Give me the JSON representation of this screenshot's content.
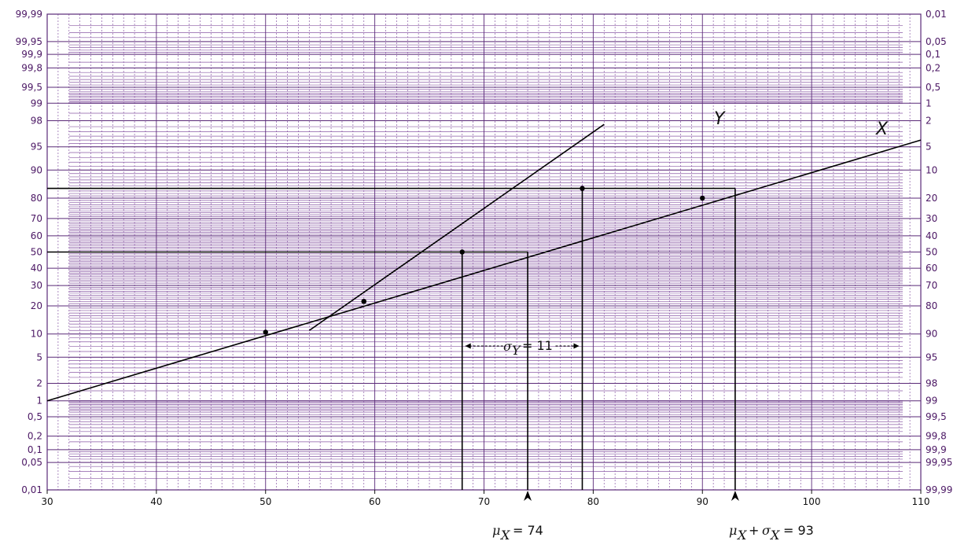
{
  "chart_data": {
    "type": "line",
    "title": "",
    "xlabel": "",
    "ylabel": "",
    "y_scale": "normal-probability",
    "xlim": [
      30,
      110
    ],
    "ylim_percent": [
      0.01,
      99.99
    ],
    "x_ticks": [
      "30",
      "40",
      "50",
      "60",
      "70",
      "80",
      "90",
      "100",
      "110"
    ],
    "left_ticks": [
      "99,99",
      "99,95",
      "99,9",
      "99,8",
      "99,5",
      "99",
      "98",
      "95",
      "90",
      "80",
      "70",
      "60",
      "50",
      "40",
      "30",
      "20",
      "10",
      "5",
      "2",
      "1",
      "0,5",
      "0,2",
      "0,1",
      "0,05",
      "0,01"
    ],
    "right_ticks": [
      "0,01",
      "0,05",
      "0,1",
      "0,2",
      "0,5",
      "1",
      "2",
      "5",
      "10",
      "20",
      "30",
      "40",
      "50",
      "60",
      "70",
      "80",
      "90",
      "95",
      "98",
      "99",
      "99,5",
      "99,8",
      "99,9",
      "99,95",
      "99,99"
    ],
    "series": [
      {
        "name": "X",
        "x": [
          30,
          110
        ],
        "y": [
          1,
          96
        ],
        "points": {
          "x": [
            50,
            59,
            90
          ],
          "y": [
            10.5,
            22,
            80
          ]
        }
      },
      {
        "name": "Y",
        "x": [
          54,
          81
        ],
        "y": [
          11,
          97.7
        ],
        "points": {
          "x": [
            59,
            68,
            79
          ],
          "y": [
            22,
            50,
            84
          ]
        }
      }
    ],
    "reference_lines": {
      "horizontal_percent": [
        50,
        84
      ],
      "vertical_x": [
        68,
        74,
        79,
        93
      ]
    },
    "annotations": {
      "sigma_y": "σ",
      "sigma_y_sub": "Y",
      "sigma_y_value": "= 11",
      "mu_x": "μ",
      "mu_x_sub": "X",
      "mu_x_value": "= 74",
      "mu_sigma_mu": "μ",
      "mu_sigma_mu_sub": "X",
      "mu_sigma_plus": "+",
      "mu_sigma_sigma": "σ",
      "mu_sigma_sigma_sub": "X",
      "mu_sigma_value": "= 93"
    },
    "colors": {
      "grid": "#5a2a78",
      "grid_dense": "#8a5aa5",
      "data": "#000000"
    }
  }
}
